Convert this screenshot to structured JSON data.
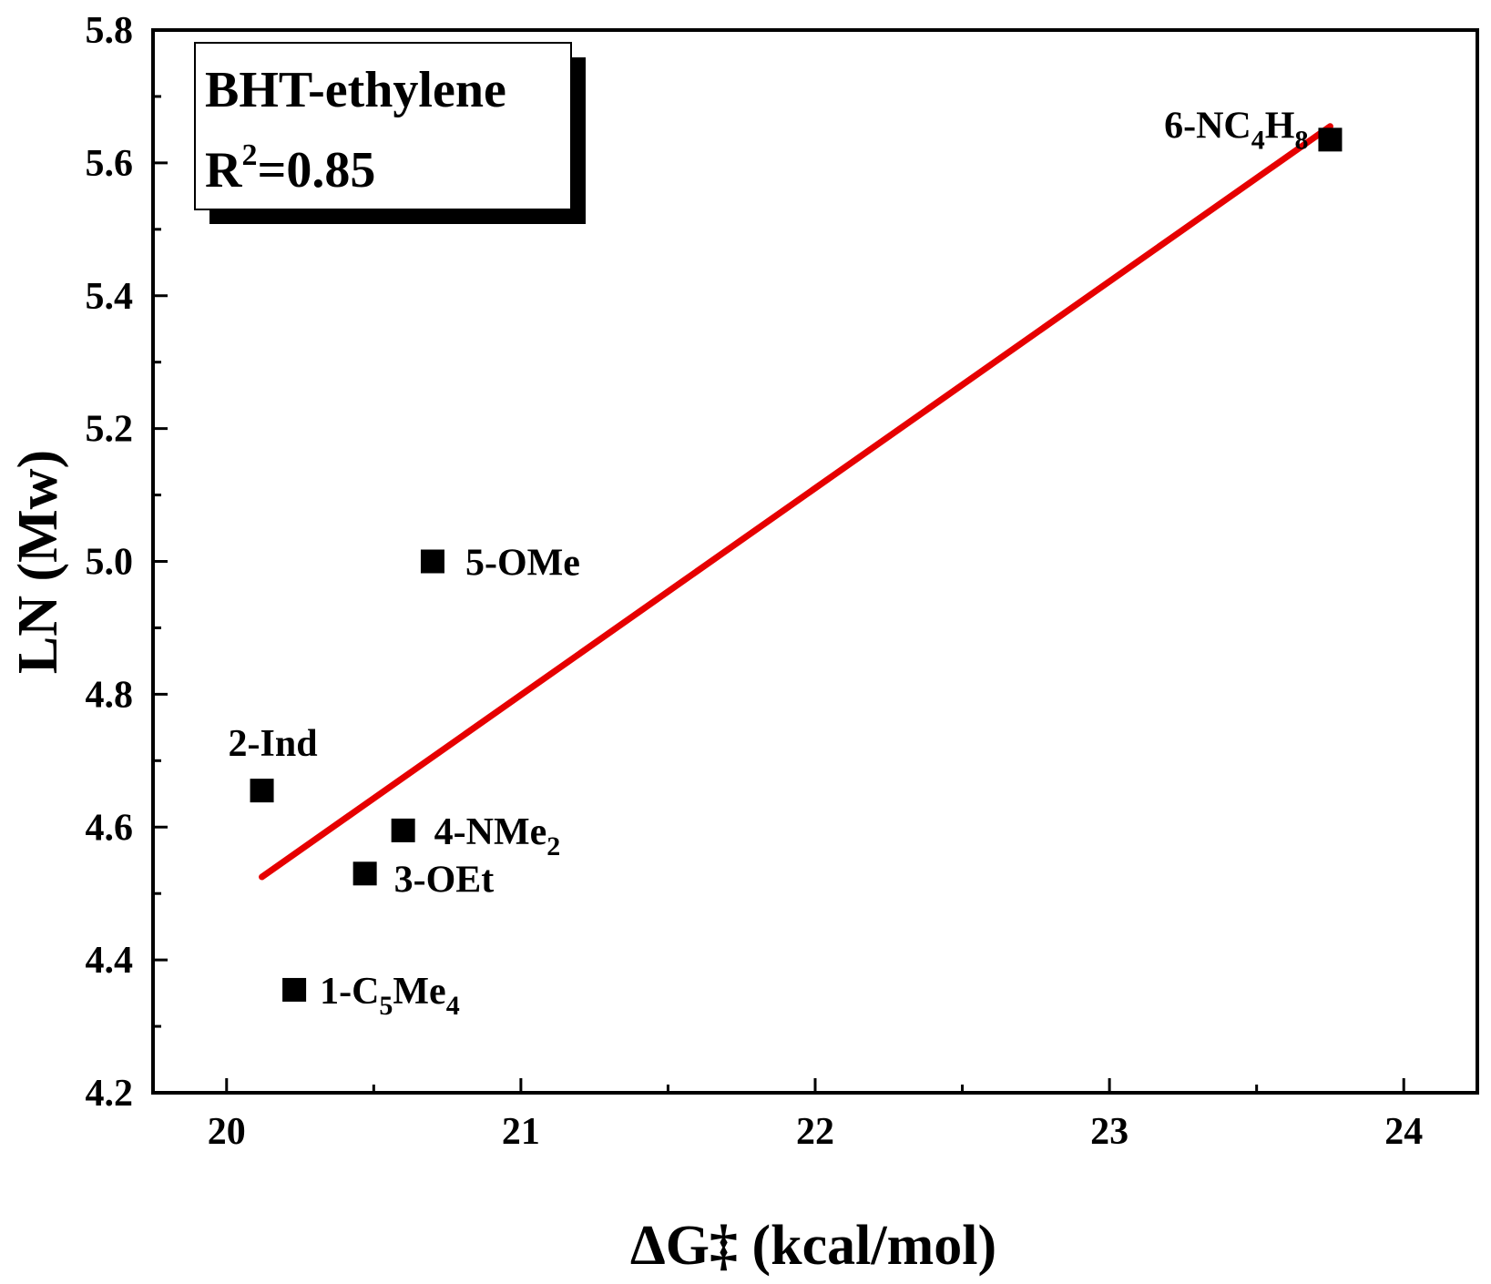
{
  "chart_data": {
    "type": "scatter",
    "xlabel": "ΔG‡ (kcal/mol)",
    "ylabel": "LN (Mw)",
    "xlim": [
      19.75,
      24.25
    ],
    "ylim": [
      4.2,
      5.8
    ],
    "x_ticks": [
      "20",
      "21",
      "22",
      "23",
      "24"
    ],
    "y_ticks": [
      "4.2",
      "4.4",
      "4.6",
      "4.8",
      "5.0",
      "5.2",
      "5.4",
      "5.6",
      "5.8"
    ],
    "grid": false,
    "marker": "square",
    "marker_color": "#000000",
    "fit_line_color": "#e60000",
    "annotation": {
      "title": "BHT-ethylene",
      "r2_label": "R",
      "r2_sup": "2",
      "r2_value": "=0.85"
    },
    "points": [
      {
        "x": 20.23,
        "y": 4.355,
        "label_parts": [
          {
            "t": "1-C"
          },
          {
            "t": "5",
            "sub": true
          },
          {
            "t": "Me"
          },
          {
            "t": "4",
            "sub": true
          }
        ]
      },
      {
        "x": 20.12,
        "y": 4.655,
        "label_parts": [
          {
            "t": "2-Ind"
          }
        ]
      },
      {
        "x": 20.47,
        "y": 4.53,
        "label_parts": [
          {
            "t": "3-OEt"
          }
        ]
      },
      {
        "x": 20.6,
        "y": 4.595,
        "label_parts": [
          {
            "t": "4-NMe"
          },
          {
            "t": "2",
            "sub": true
          }
        ]
      },
      {
        "x": 20.7,
        "y": 5.0,
        "label_parts": [
          {
            "t": "5-OMe"
          }
        ]
      },
      {
        "x": 23.75,
        "y": 5.635,
        "label_parts": [
          {
            "t": "6-NC"
          },
          {
            "t": "4",
            "sub": true
          },
          {
            "t": "H"
          },
          {
            "t": "8",
            "sub": true
          }
        ]
      }
    ],
    "fit_line": {
      "x": [
        20.12,
        23.75
      ],
      "y": [
        4.525,
        5.655
      ]
    }
  }
}
